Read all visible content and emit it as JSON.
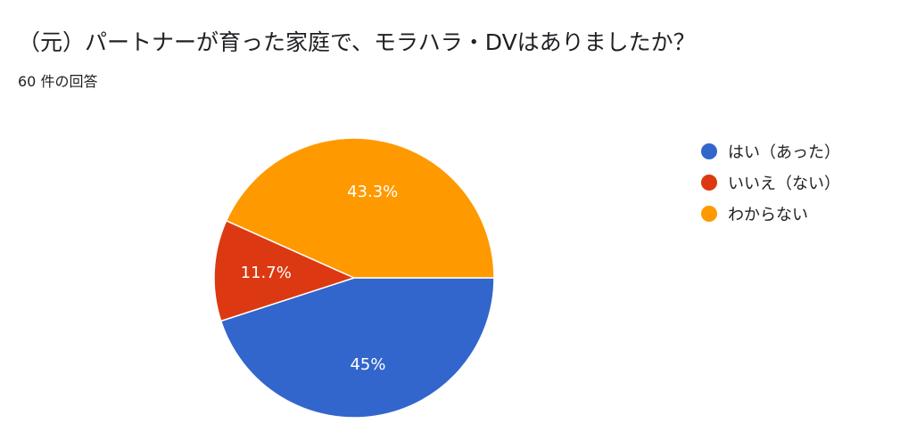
{
  "chart_data": {
    "type": "pie",
    "title": "（元）パートナーが育った家庭で、モラハラ・DVはありましたか？",
    "subtitle": "60 件の回答",
    "categories": [
      "はい（あった）",
      "いいえ（ない）",
      "わからない"
    ],
    "values": [
      45,
      11.7,
      43.3
    ],
    "labels": [
      "45%",
      "11.7%",
      "43.3%"
    ],
    "colors": [
      "#3366cc",
      "#dc3912",
      "#ff9900"
    ],
    "legend_position": "right"
  }
}
